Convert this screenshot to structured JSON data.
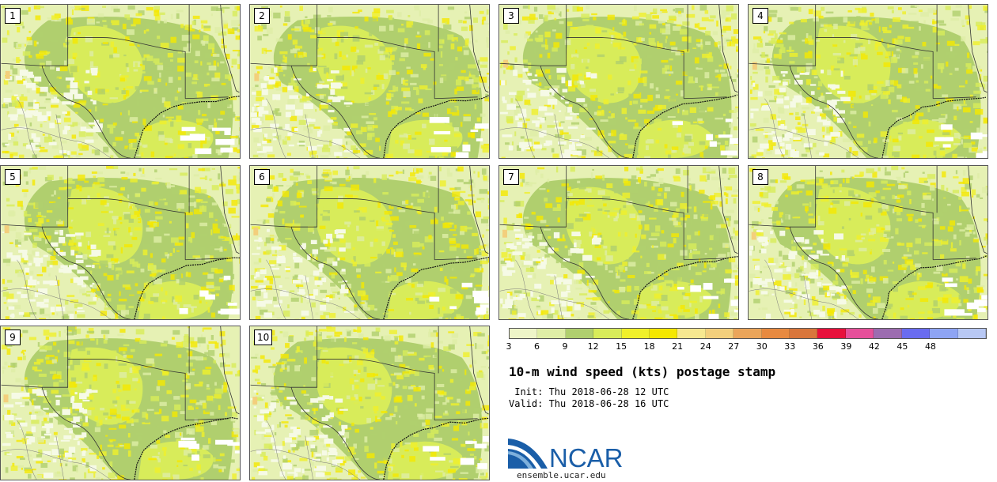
{
  "panels": [
    {
      "label": "1"
    },
    {
      "label": "2"
    },
    {
      "label": "3"
    },
    {
      "label": "4"
    },
    {
      "label": "5"
    },
    {
      "label": "6"
    },
    {
      "label": "7"
    },
    {
      "label": "8"
    },
    {
      "label": "9"
    },
    {
      "label": "10"
    }
  ],
  "colorbar": {
    "ticks": [
      "3",
      "6",
      "9",
      "12",
      "15",
      "18",
      "21",
      "24",
      "27",
      "30",
      "33",
      "36",
      "39",
      "42",
      "45",
      "48"
    ],
    "colors": [
      "#eef5c8",
      "#dfeea6",
      "#b0cf6e",
      "#d8ec5a",
      "#f0f02a",
      "#f5e800",
      "#f7e890",
      "#f3cf7c",
      "#eba55a",
      "#e88a40",
      "#d9763c",
      "#e8103c",
      "#e6509a",
      "#9c6cb0",
      "#6a6cf0",
      "#8ea4f4",
      "#b8c8f4"
    ],
    "min": 3,
    "max": 51,
    "step": 3
  },
  "title": "10-m wind speed (kts) postage stamp",
  "init_line": " Init: Thu 2018-06-28 12 UTC",
  "valid_line": "Valid: Thu 2018-06-28 16 UTC",
  "logo": {
    "text": "NCAR",
    "brand_color": "#1a5ea8"
  },
  "site": "ensemble.ucar.edu"
}
